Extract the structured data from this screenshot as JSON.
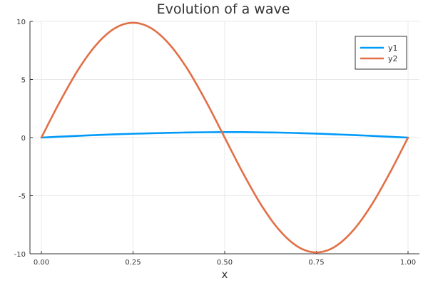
{
  "chart_data": {
    "type": "line",
    "title": "Evolution of a wave",
    "xlabel": "x",
    "ylabel": "",
    "xlim": [
      0,
      1
    ],
    "ylim": [
      -10,
      10
    ],
    "x_ticks": [
      0,
      0.25,
      0.5,
      0.75,
      1
    ],
    "x_tick_labels": [
      "0.00",
      "0.25",
      "0.50",
      "0.75",
      "1.00"
    ],
    "y_ticks": [
      -10,
      -5,
      0,
      5,
      10
    ],
    "y_tick_labels": [
      "-10",
      "-5",
      "0",
      "5",
      "10"
    ],
    "grid": true,
    "legend": "top-right",
    "series": [
      {
        "name": "y1",
        "color": "#009af9",
        "x": [
          0,
          0.05,
          0.1,
          0.15,
          0.2,
          0.25,
          0.3,
          0.35,
          0.4,
          0.45,
          0.5,
          0.55,
          0.6,
          0.65,
          0.7,
          0.75,
          0.8,
          0.85,
          0.9,
          0.95,
          1.0
        ],
        "y": [
          0,
          0.08,
          0.15,
          0.22,
          0.28,
          0.33,
          0.37,
          0.41,
          0.44,
          0.46,
          0.47,
          0.47,
          0.45,
          0.43,
          0.39,
          0.34,
          0.28,
          0.22,
          0.15,
          0.07,
          0
        ]
      },
      {
        "name": "y2",
        "color": "#e26f46",
        "x": [
          0,
          0.05,
          0.1,
          0.15,
          0.2,
          0.25,
          0.3,
          0.35,
          0.4,
          0.45,
          0.5,
          0.55,
          0.6,
          0.65,
          0.7,
          0.75,
          0.8,
          0.85,
          0.9,
          0.95,
          1.0
        ],
        "y": [
          0,
          3.06,
          5.82,
          8.0,
          9.4,
          9.88,
          9.4,
          8.0,
          5.82,
          3.06,
          0,
          -3.06,
          -5.82,
          -8.0,
          -9.4,
          -9.88,
          -9.4,
          -8.0,
          -5.82,
          -3.06,
          0
        ]
      }
    ]
  }
}
